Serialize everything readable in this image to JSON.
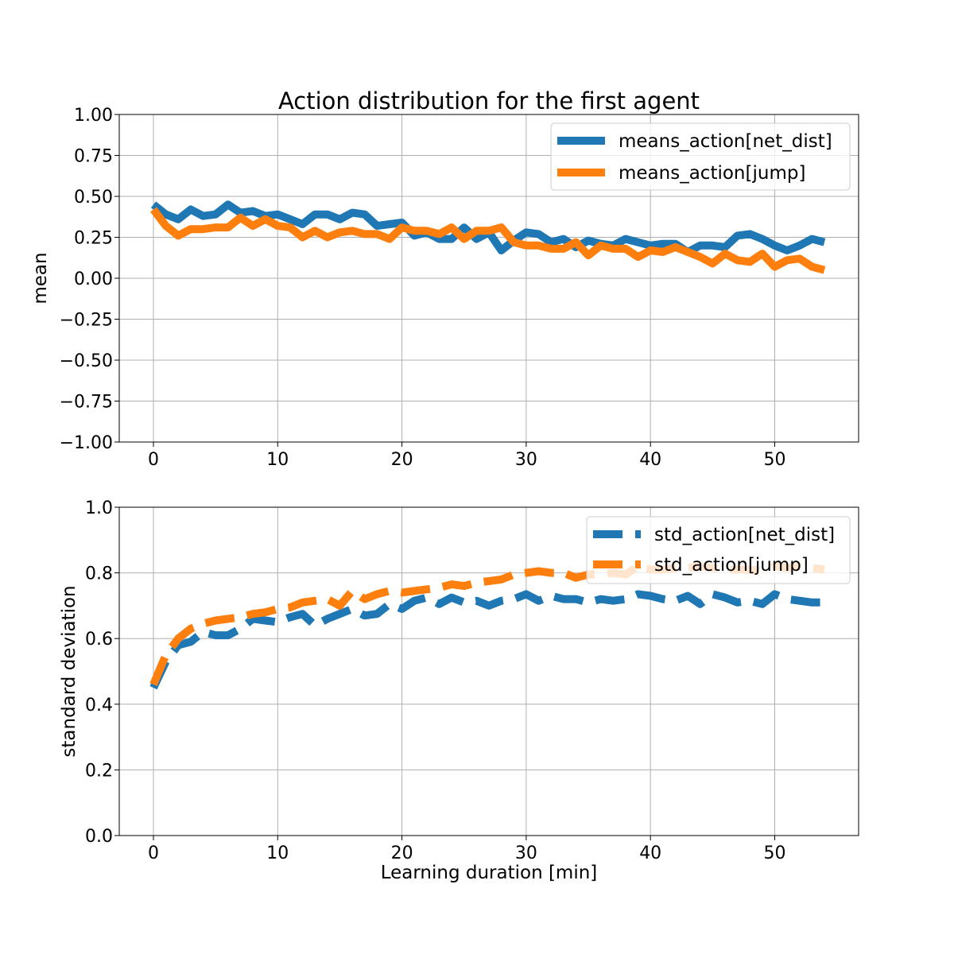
{
  "figure": {
    "title": "Action distribution for the first agent"
  },
  "chart_data": [
    {
      "type": "line",
      "title": "Action distribution for the first agent",
      "xlabel": "",
      "ylabel": "mean",
      "xlim": [
        -2.75,
        56.75
      ],
      "ylim": [
        -1.0,
        1.0
      ],
      "xticks": [
        0,
        10,
        20,
        30,
        40,
        50
      ],
      "xtick_labels": [
        "0",
        "10",
        "20",
        "30",
        "40",
        "50"
      ],
      "yticks": [
        -1.0,
        -0.75,
        -0.5,
        -0.25,
        0.0,
        0.25,
        0.5,
        0.75,
        1.0
      ],
      "ytick_labels": [
        "−1.00",
        "−0.75",
        "−0.50",
        "−0.25",
        "0.00",
        "0.25",
        "0.50",
        "0.75",
        "1.00"
      ],
      "grid": true,
      "legend_position": "top-right",
      "x": [
        0,
        1,
        2,
        3,
        4,
        5,
        6,
        7,
        8,
        9,
        10,
        11,
        12,
        13,
        14,
        15,
        16,
        17,
        18,
        19,
        20,
        21,
        22,
        23,
        24,
        25,
        26,
        27,
        28,
        29,
        30,
        31,
        32,
        33,
        34,
        35,
        36,
        37,
        38,
        39,
        40,
        41,
        42,
        43,
        44,
        45,
        46,
        47,
        48,
        49,
        50,
        51,
        52,
        53,
        54
      ],
      "series": [
        {
          "name": "means_action[net_dist]",
          "color": "#1f77b4",
          "dash": "solid",
          "values": [
            0.45,
            0.39,
            0.36,
            0.42,
            0.38,
            0.39,
            0.45,
            0.4,
            0.41,
            0.38,
            0.39,
            0.36,
            0.33,
            0.39,
            0.39,
            0.36,
            0.4,
            0.39,
            0.32,
            0.33,
            0.34,
            0.26,
            0.28,
            0.24,
            0.24,
            0.31,
            0.24,
            0.28,
            0.17,
            0.23,
            0.28,
            0.27,
            0.22,
            0.24,
            0.19,
            0.23,
            0.21,
            0.2,
            0.24,
            0.22,
            0.2,
            0.21,
            0.21,
            0.16,
            0.2,
            0.2,
            0.19,
            0.26,
            0.27,
            0.24,
            0.2,
            0.17,
            0.2,
            0.24,
            0.22
          ]
        },
        {
          "name": "means_action[jump]",
          "color": "#ff7f0e",
          "dash": "solid",
          "values": [
            0.42,
            0.32,
            0.26,
            0.3,
            0.3,
            0.31,
            0.31,
            0.37,
            0.32,
            0.36,
            0.32,
            0.31,
            0.25,
            0.29,
            0.25,
            0.28,
            0.29,
            0.27,
            0.27,
            0.24,
            0.31,
            0.29,
            0.29,
            0.27,
            0.31,
            0.24,
            0.29,
            0.29,
            0.31,
            0.22,
            0.2,
            0.2,
            0.18,
            0.18,
            0.22,
            0.14,
            0.2,
            0.18,
            0.18,
            0.13,
            0.17,
            0.16,
            0.19,
            0.16,
            0.13,
            0.09,
            0.15,
            0.11,
            0.1,
            0.15,
            0.07,
            0.11,
            0.12,
            0.07,
            0.05
          ]
        }
      ]
    },
    {
      "type": "line",
      "title": "",
      "xlabel": "Learning duration [min]",
      "ylabel": "standard deviation",
      "xlim": [
        -2.75,
        56.75
      ],
      "ylim": [
        0.0,
        1.0
      ],
      "xticks": [
        0,
        10,
        20,
        30,
        40,
        50
      ],
      "xtick_labels": [
        "0",
        "10",
        "20",
        "30",
        "40",
        "50"
      ],
      "yticks": [
        0.0,
        0.2,
        0.4,
        0.6,
        0.8,
        1.0
      ],
      "ytick_labels": [
        "0.0",
        "0.2",
        "0.4",
        "0.6",
        "0.8",
        "1.0"
      ],
      "grid": true,
      "legend_position": "top-right",
      "x": [
        0,
        1,
        2,
        3,
        4,
        5,
        6,
        7,
        8,
        9,
        10,
        11,
        12,
        13,
        14,
        15,
        16,
        17,
        18,
        19,
        20,
        21,
        22,
        23,
        24,
        25,
        26,
        27,
        28,
        29,
        30,
        31,
        32,
        33,
        34,
        35,
        36,
        37,
        38,
        39,
        40,
        41,
        42,
        43,
        44,
        45,
        46,
        47,
        48,
        49,
        50,
        51,
        52,
        53,
        54
      ],
      "series": [
        {
          "name": "std_action[net_dist]",
          "color": "#1f77b4",
          "dash": "dashed",
          "values": [
            0.45,
            0.53,
            0.58,
            0.59,
            0.62,
            0.61,
            0.61,
            0.63,
            0.66,
            0.655,
            0.65,
            0.665,
            0.675,
            0.64,
            0.66,
            0.675,
            0.69,
            0.67,
            0.675,
            0.705,
            0.69,
            0.715,
            0.725,
            0.705,
            0.725,
            0.71,
            0.715,
            0.7,
            0.715,
            0.72,
            0.735,
            0.715,
            0.73,
            0.72,
            0.72,
            0.71,
            0.72,
            0.715,
            0.72,
            0.735,
            0.73,
            0.72,
            0.715,
            0.73,
            0.705,
            0.735,
            0.725,
            0.71,
            0.715,
            0.705,
            0.735,
            0.72,
            0.715,
            0.71,
            0.71
          ]
        },
        {
          "name": "std_action[jump]",
          "color": "#ff7f0e",
          "dash": "dashed",
          "values": [
            0.46,
            0.55,
            0.6,
            0.63,
            0.645,
            0.655,
            0.66,
            0.665,
            0.675,
            0.68,
            0.69,
            0.695,
            0.71,
            0.715,
            0.72,
            0.7,
            0.745,
            0.72,
            0.735,
            0.745,
            0.74,
            0.745,
            0.75,
            0.755,
            0.765,
            0.76,
            0.77,
            0.775,
            0.78,
            0.795,
            0.8,
            0.805,
            0.8,
            0.8,
            0.785,
            0.795,
            0.795,
            0.8,
            0.795,
            0.82,
            0.81,
            0.81,
            0.815,
            0.815,
            0.82,
            0.815,
            0.81,
            0.81,
            0.81,
            0.805,
            0.82,
            0.815,
            0.82,
            0.815,
            0.81
          ]
        }
      ]
    }
  ]
}
